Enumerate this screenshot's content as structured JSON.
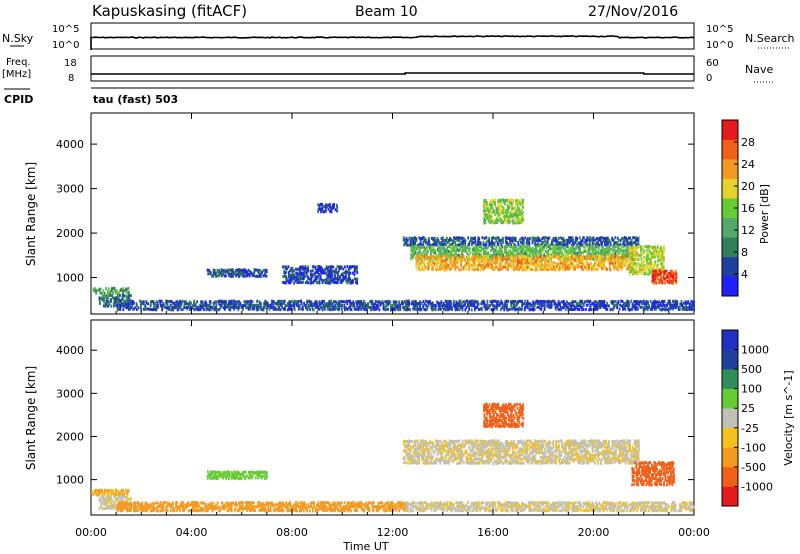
{
  "header": {
    "site": "Kapuskasing (fitACF)",
    "beam": "Beam 10",
    "date": "27/Nov/2016",
    "nsky_label": "N.Sky",
    "nsky_ticks": [
      "10^5",
      "10^0"
    ],
    "nsearch_label": "N.Search",
    "nsearch_ticks": [
      "10^5",
      "10^0"
    ],
    "freq_label": "Freq.",
    "freq_unit": "[MHz]",
    "freq_ticks": [
      "18",
      "8"
    ],
    "nave_label": "Nave",
    "nave_ticks": [
      "60",
      "0"
    ],
    "cpid_label": "CPID",
    "cpid_value": "tau (fast) 503"
  },
  "colors": {
    "power": [
      "#1f1fff",
      "#2040a0",
      "#2f7f5a",
      "#55a86a",
      "#66cc33",
      "#e6d22a",
      "#f59a20",
      "#f06018",
      "#e51a1a"
    ],
    "velocity": [
      "#e51a1a",
      "#f06018",
      "#f59a20",
      "#f3c21f",
      "#c0c0b4",
      "#66cc33",
      "#2f8f5a",
      "#2040a0",
      "#2030c0"
    ],
    "ground_scatter": "#c0c0b4"
  },
  "chart_data": [
    {
      "type": "heatmap",
      "title": "Power",
      "xlabel": "Time UT",
      "ylabel": "Slant Range [km]",
      "xlim": [
        0,
        24
      ],
      "ylim": [
        180,
        4700
      ],
      "x_ticks": [
        "00:00",
        "04:00",
        "08:00",
        "12:00",
        "16:00",
        "20:00",
        "00:00"
      ],
      "y_ticks": [
        1000,
        2000,
        3000,
        4000
      ],
      "colorbar": {
        "label": "Power [dB]",
        "ticks": [
          4,
          8,
          12,
          16,
          20,
          24,
          28
        ],
        "range": [
          0,
          32
        ]
      },
      "regions": [
        {
          "t": [
            0.0,
            1.5
          ],
          "r": [
            620,
            760
          ],
          "level": 12
        },
        {
          "t": [
            0.3,
            1.6
          ],
          "r": [
            330,
            600
          ],
          "level": 8
        },
        {
          "t": [
            1.0,
            12.6
          ],
          "r": [
            250,
            470
          ],
          "level": 6
        },
        {
          "t": [
            4.6,
            7.0
          ],
          "r": [
            1000,
            1180
          ],
          "level": 6
        },
        {
          "t": [
            7.6,
            10.6
          ],
          "r": [
            850,
            1250
          ],
          "level": 5
        },
        {
          "t": [
            9.0,
            9.8
          ],
          "r": [
            2450,
            2650
          ],
          "level": 5
        },
        {
          "t": [
            12.4,
            21.8
          ],
          "r": [
            1700,
            1900
          ],
          "level": 6
        },
        {
          "t": [
            12.7,
            21.6
          ],
          "r": [
            1380,
            1700
          ],
          "level": 14
        },
        {
          "t": [
            12.9,
            21.6
          ],
          "r": [
            1150,
            1480
          ],
          "level": 22
        },
        {
          "t": [
            15.6,
            17.2
          ],
          "r": [
            2200,
            2750
          ],
          "level": 16
        },
        {
          "t": [
            21.4,
            22.8
          ],
          "r": [
            1050,
            1700
          ],
          "level": 18
        },
        {
          "t": [
            22.3,
            23.3
          ],
          "r": [
            850,
            1150
          ],
          "level": 28
        },
        {
          "t": [
            12.5,
            24.0
          ],
          "r": [
            250,
            470
          ],
          "level": 5
        }
      ]
    },
    {
      "type": "heatmap",
      "title": "Velocity",
      "xlabel": "Time UT",
      "ylabel": "Slant Range [km]",
      "xlim": [
        0,
        24
      ],
      "ylim": [
        180,
        4700
      ],
      "x_ticks": [
        "00:00",
        "04:00",
        "08:00",
        "12:00",
        "16:00",
        "20:00",
        "00:00"
      ],
      "y_ticks": [
        1000,
        2000,
        3000,
        4000
      ],
      "colorbar": {
        "label": "Velocity [m s^-1]",
        "ticks": [
          "1000",
          "500",
          "100",
          "25",
          "-25",
          "-100",
          "-500",
          "-1000"
        ]
      },
      "regions": [
        {
          "t": [
            0.0,
            1.5
          ],
          "r": [
            620,
            760
          ],
          "level": -25
        },
        {
          "t": [
            0.3,
            1.6
          ],
          "r": [
            300,
            600
          ],
          "level": 0
        },
        {
          "t": [
            1.0,
            12.6
          ],
          "r": [
            250,
            470
          ],
          "level": -60
        },
        {
          "t": [
            4.6,
            7.0
          ],
          "r": [
            1000,
            1180
          ],
          "level": 50
        },
        {
          "t": [
            12.4,
            21.8
          ],
          "r": [
            1350,
            1900
          ],
          "level": 0
        },
        {
          "t": [
            15.6,
            17.2
          ],
          "r": [
            2200,
            2750
          ],
          "level": -300
        },
        {
          "t": [
            21.5,
            23.2
          ],
          "r": [
            850,
            1400
          ],
          "level": -150
        },
        {
          "t": [
            12.5,
            24.0
          ],
          "r": [
            250,
            470
          ],
          "level": 0
        }
      ]
    }
  ]
}
